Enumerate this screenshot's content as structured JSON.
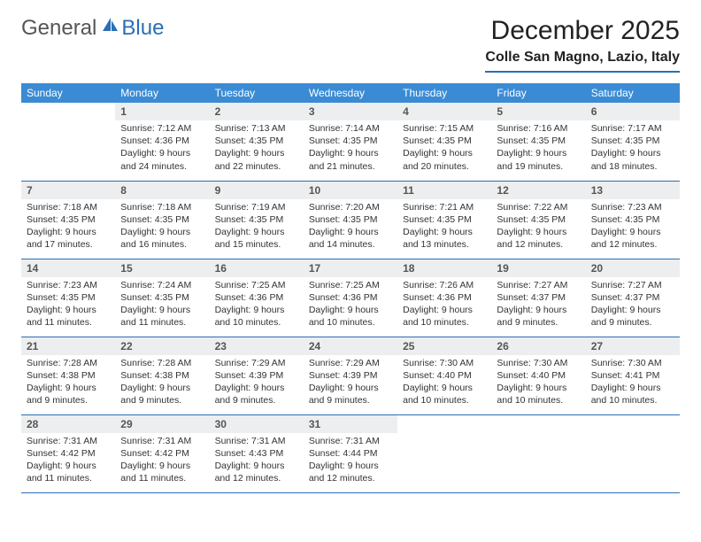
{
  "brand": {
    "part1": "General",
    "part2": "Blue"
  },
  "title": "December 2025",
  "location": "Colle San Magno, Lazio, Italy",
  "colors": {
    "header_bg": "#3b8bd4",
    "accent": "#2a6fb5",
    "daynum_bg": "#eceef0",
    "text": "#333333",
    "page_bg": "#ffffff"
  },
  "typography": {
    "title_fontsize": 30,
    "location_fontsize": 16,
    "weekday_fontsize": 12,
    "daynum_fontsize": 12,
    "body_fontsize": 10.5
  },
  "weekdays": [
    "Sunday",
    "Monday",
    "Tuesday",
    "Wednesday",
    "Thursday",
    "Friday",
    "Saturday"
  ],
  "weeks": [
    [
      {
        "n": "",
        "lines": []
      },
      {
        "n": "1",
        "lines": [
          "Sunrise: 7:12 AM",
          "Sunset: 4:36 PM",
          "Daylight: 9 hours",
          "and 24 minutes."
        ]
      },
      {
        "n": "2",
        "lines": [
          "Sunrise: 7:13 AM",
          "Sunset: 4:35 PM",
          "Daylight: 9 hours",
          "and 22 minutes."
        ]
      },
      {
        "n": "3",
        "lines": [
          "Sunrise: 7:14 AM",
          "Sunset: 4:35 PM",
          "Daylight: 9 hours",
          "and 21 minutes."
        ]
      },
      {
        "n": "4",
        "lines": [
          "Sunrise: 7:15 AM",
          "Sunset: 4:35 PM",
          "Daylight: 9 hours",
          "and 20 minutes."
        ]
      },
      {
        "n": "5",
        "lines": [
          "Sunrise: 7:16 AM",
          "Sunset: 4:35 PM",
          "Daylight: 9 hours",
          "and 19 minutes."
        ]
      },
      {
        "n": "6",
        "lines": [
          "Sunrise: 7:17 AM",
          "Sunset: 4:35 PM",
          "Daylight: 9 hours",
          "and 18 minutes."
        ]
      }
    ],
    [
      {
        "n": "7",
        "lines": [
          "Sunrise: 7:18 AM",
          "Sunset: 4:35 PM",
          "Daylight: 9 hours",
          "and 17 minutes."
        ]
      },
      {
        "n": "8",
        "lines": [
          "Sunrise: 7:18 AM",
          "Sunset: 4:35 PM",
          "Daylight: 9 hours",
          "and 16 minutes."
        ]
      },
      {
        "n": "9",
        "lines": [
          "Sunrise: 7:19 AM",
          "Sunset: 4:35 PM",
          "Daylight: 9 hours",
          "and 15 minutes."
        ]
      },
      {
        "n": "10",
        "lines": [
          "Sunrise: 7:20 AM",
          "Sunset: 4:35 PM",
          "Daylight: 9 hours",
          "and 14 minutes."
        ]
      },
      {
        "n": "11",
        "lines": [
          "Sunrise: 7:21 AM",
          "Sunset: 4:35 PM",
          "Daylight: 9 hours",
          "and 13 minutes."
        ]
      },
      {
        "n": "12",
        "lines": [
          "Sunrise: 7:22 AM",
          "Sunset: 4:35 PM",
          "Daylight: 9 hours",
          "and 12 minutes."
        ]
      },
      {
        "n": "13",
        "lines": [
          "Sunrise: 7:23 AM",
          "Sunset: 4:35 PM",
          "Daylight: 9 hours",
          "and 12 minutes."
        ]
      }
    ],
    [
      {
        "n": "14",
        "lines": [
          "Sunrise: 7:23 AM",
          "Sunset: 4:35 PM",
          "Daylight: 9 hours",
          "and 11 minutes."
        ]
      },
      {
        "n": "15",
        "lines": [
          "Sunrise: 7:24 AM",
          "Sunset: 4:35 PM",
          "Daylight: 9 hours",
          "and 11 minutes."
        ]
      },
      {
        "n": "16",
        "lines": [
          "Sunrise: 7:25 AM",
          "Sunset: 4:36 PM",
          "Daylight: 9 hours",
          "and 10 minutes."
        ]
      },
      {
        "n": "17",
        "lines": [
          "Sunrise: 7:25 AM",
          "Sunset: 4:36 PM",
          "Daylight: 9 hours",
          "and 10 minutes."
        ]
      },
      {
        "n": "18",
        "lines": [
          "Sunrise: 7:26 AM",
          "Sunset: 4:36 PM",
          "Daylight: 9 hours",
          "and 10 minutes."
        ]
      },
      {
        "n": "19",
        "lines": [
          "Sunrise: 7:27 AM",
          "Sunset: 4:37 PM",
          "Daylight: 9 hours",
          "and 9 minutes."
        ]
      },
      {
        "n": "20",
        "lines": [
          "Sunrise: 7:27 AM",
          "Sunset: 4:37 PM",
          "Daylight: 9 hours",
          "and 9 minutes."
        ]
      }
    ],
    [
      {
        "n": "21",
        "lines": [
          "Sunrise: 7:28 AM",
          "Sunset: 4:38 PM",
          "Daylight: 9 hours",
          "and 9 minutes."
        ]
      },
      {
        "n": "22",
        "lines": [
          "Sunrise: 7:28 AM",
          "Sunset: 4:38 PM",
          "Daylight: 9 hours",
          "and 9 minutes."
        ]
      },
      {
        "n": "23",
        "lines": [
          "Sunrise: 7:29 AM",
          "Sunset: 4:39 PM",
          "Daylight: 9 hours",
          "and 9 minutes."
        ]
      },
      {
        "n": "24",
        "lines": [
          "Sunrise: 7:29 AM",
          "Sunset: 4:39 PM",
          "Daylight: 9 hours",
          "and 9 minutes."
        ]
      },
      {
        "n": "25",
        "lines": [
          "Sunrise: 7:30 AM",
          "Sunset: 4:40 PM",
          "Daylight: 9 hours",
          "and 10 minutes."
        ]
      },
      {
        "n": "26",
        "lines": [
          "Sunrise: 7:30 AM",
          "Sunset: 4:40 PM",
          "Daylight: 9 hours",
          "and 10 minutes."
        ]
      },
      {
        "n": "27",
        "lines": [
          "Sunrise: 7:30 AM",
          "Sunset: 4:41 PM",
          "Daylight: 9 hours",
          "and 10 minutes."
        ]
      }
    ],
    [
      {
        "n": "28",
        "lines": [
          "Sunrise: 7:31 AM",
          "Sunset: 4:42 PM",
          "Daylight: 9 hours",
          "and 11 minutes."
        ]
      },
      {
        "n": "29",
        "lines": [
          "Sunrise: 7:31 AM",
          "Sunset: 4:42 PM",
          "Daylight: 9 hours",
          "and 11 minutes."
        ]
      },
      {
        "n": "30",
        "lines": [
          "Sunrise: 7:31 AM",
          "Sunset: 4:43 PM",
          "Daylight: 9 hours",
          "and 12 minutes."
        ]
      },
      {
        "n": "31",
        "lines": [
          "Sunrise: 7:31 AM",
          "Sunset: 4:44 PM",
          "Daylight: 9 hours",
          "and 12 minutes."
        ]
      },
      {
        "n": "",
        "lines": []
      },
      {
        "n": "",
        "lines": []
      },
      {
        "n": "",
        "lines": []
      }
    ]
  ]
}
